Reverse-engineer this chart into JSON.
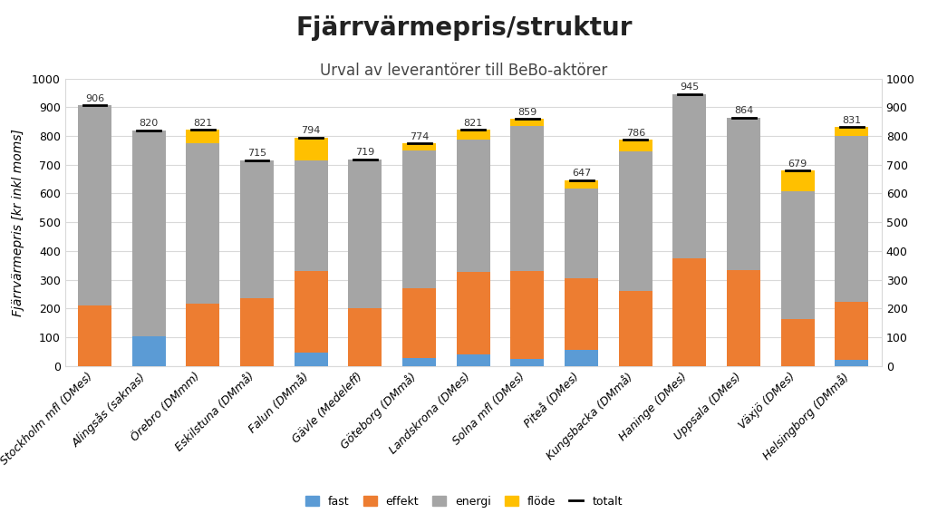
{
  "title": "Fjärrvärmepris/struktur",
  "subtitle": "Urval av leverantörer till BeBo-aktörer",
  "ylabel": "Fjärrvärmepris [kr inkl moms]",
  "ylim": [
    0,
    1000
  ],
  "yticks": [
    0,
    100,
    200,
    300,
    400,
    500,
    600,
    700,
    800,
    900,
    1000
  ],
  "categories": [
    "Stockholm mfl (DMes)",
    "Alingsås (saknas)",
    "Örebro (DMmm)",
    "Eskilstuna (DMmå)",
    "Falun (DMmå)",
    "Gävle (Medeleff)",
    "Göteborg (DMmå)",
    "Landskrona (DMes)",
    "Solna mfl (DMes)",
    "Piteå (DMes)",
    "Kungsbacka (DMmå)",
    "Haninge (DMes)",
    "Uppsala (DMes)",
    "Växjö (DMes)",
    "Helsingborg (DMmå)"
  ],
  "totals": [
    906,
    820,
    821,
    715,
    794,
    719,
    774,
    821,
    859,
    647,
    786,
    945,
    864,
    679,
    831
  ],
  "fast": [
    0,
    105,
    0,
    0,
    47,
    0,
    27,
    42,
    25,
    55,
    0,
    0,
    0,
    0,
    23
  ],
  "effekt": [
    210,
    0,
    218,
    235,
    285,
    200,
    245,
    285,
    305,
    250,
    260,
    375,
    335,
    165,
    200
  ],
  "energi": [
    696,
    715,
    558,
    480,
    382,
    519,
    477,
    459,
    504,
    312,
    486,
    570,
    529,
    444,
    578
  ],
  "flode": [
    0,
    0,
    45,
    0,
    80,
    0,
    25,
    35,
    25,
    30,
    40,
    0,
    0,
    70,
    30
  ],
  "color_fast": "#5b9bd5",
  "color_effekt": "#ed7d31",
  "color_energi": "#a5a5a5",
  "color_flode": "#ffc000",
  "color_totalt": "#000000",
  "background_color": "#ffffff",
  "grid_color": "#d9d9d9",
  "title_fontsize": 20,
  "subtitle_fontsize": 12,
  "ylabel_fontsize": 10,
  "tick_fontsize": 9,
  "xlabel_fontsize": 9,
  "annotation_fontsize": 8,
  "legend_fontsize": 9
}
